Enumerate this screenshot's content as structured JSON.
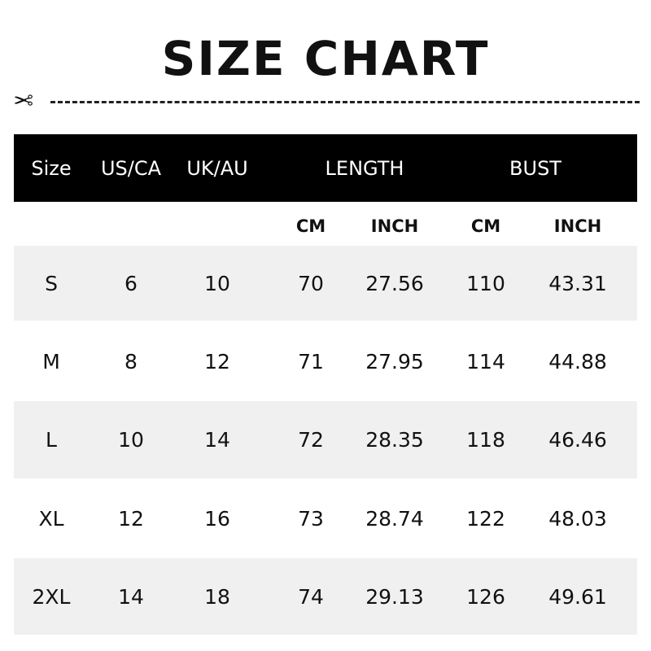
{
  "title": "SIZE CHART",
  "header": [
    "Size",
    "US/CA",
    "UK/AU",
    "LENGTH",
    "BUST"
  ],
  "subheader": [
    "CM",
    "INCH",
    "CM",
    "INCH"
  ],
  "rows": [
    [
      "S",
      "6",
      "10",
      "70",
      "27.56",
      "110",
      "43.31"
    ],
    [
      "M",
      "8",
      "12",
      "71",
      "27.95",
      "114",
      "44.88"
    ],
    [
      "L",
      "10",
      "14",
      "72",
      "28.35",
      "118",
      "46.46"
    ],
    [
      "XL",
      "12",
      "16",
      "73",
      "28.74",
      "122",
      "48.03"
    ],
    [
      "2XL",
      "14",
      "18",
      "74",
      "29.13",
      "126",
      "49.61"
    ]
  ],
  "colors": {
    "header_bg": "#000000",
    "stripe": "#f0f0f0"
  },
  "icons": {
    "cut_line": "scissors-icon"
  }
}
